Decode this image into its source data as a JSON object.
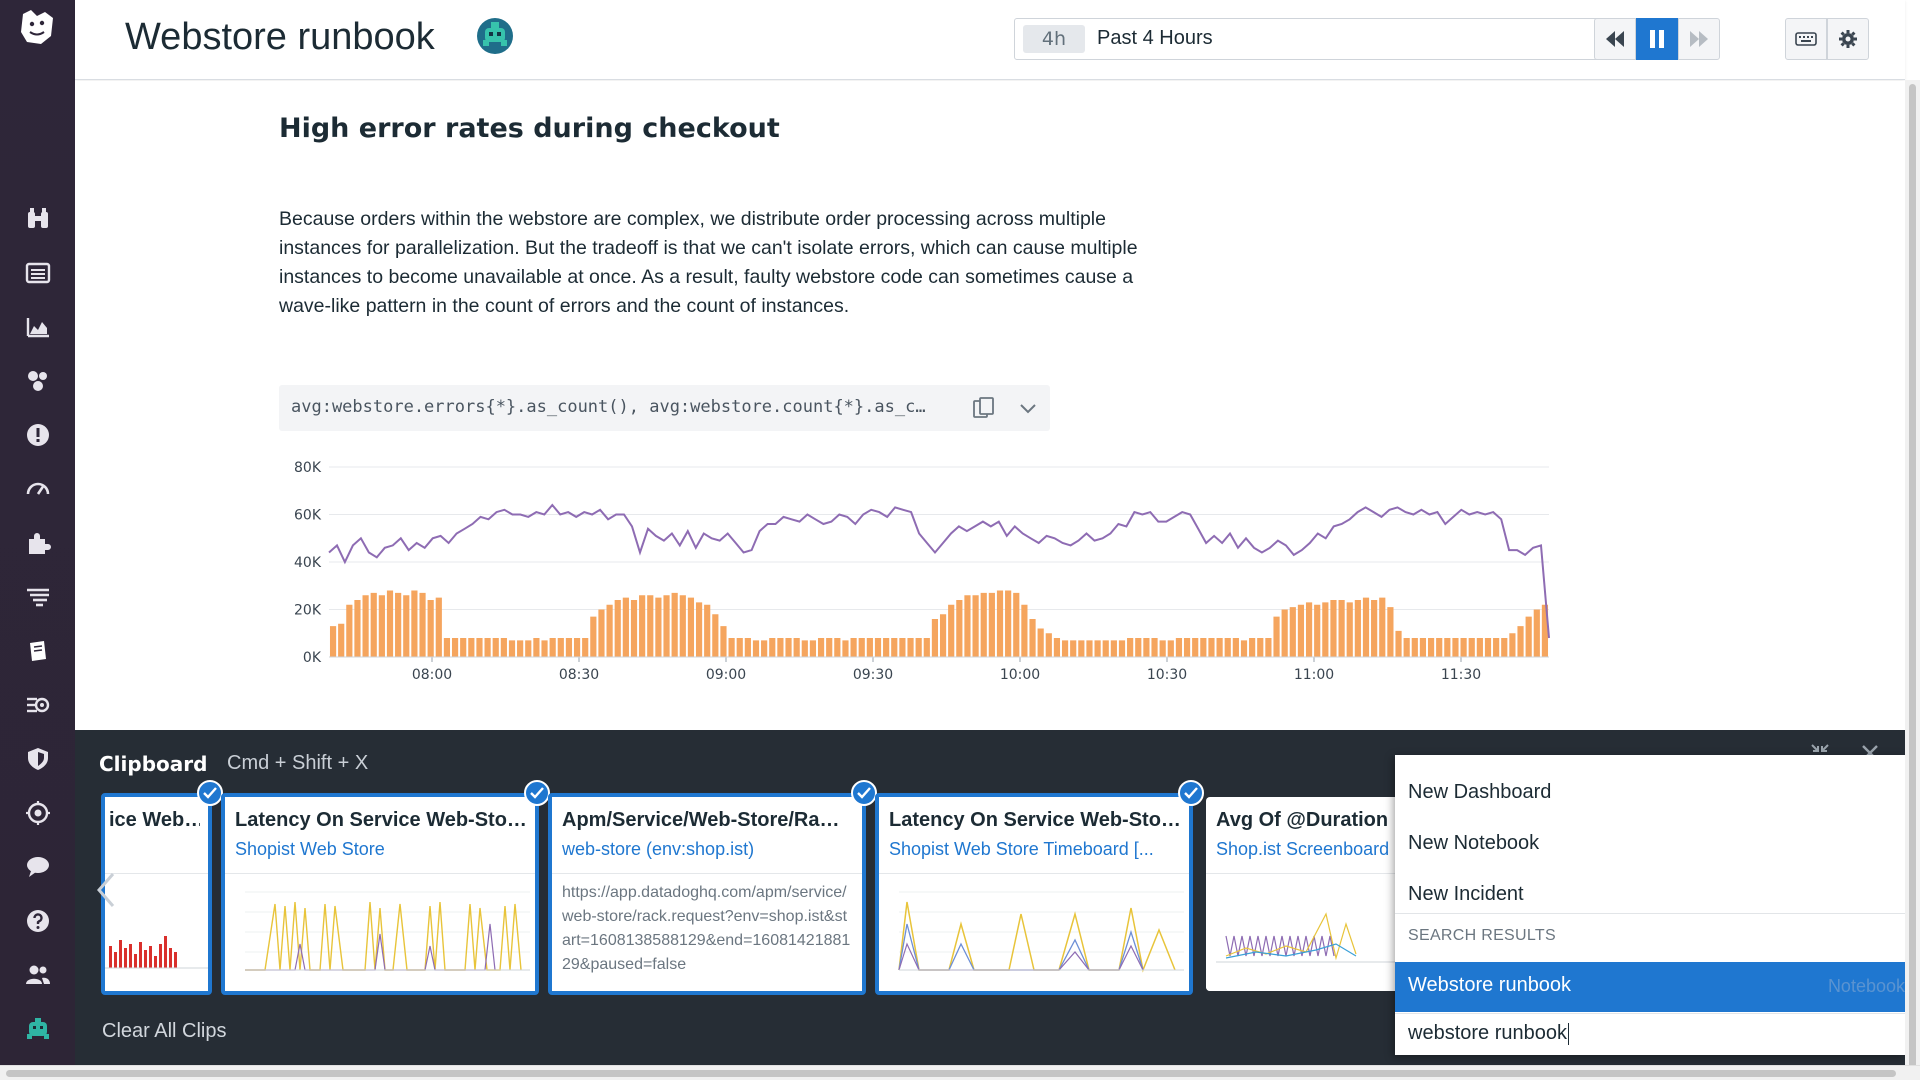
{
  "header": {
    "title": "Webstore runbook",
    "time_chip": "4h",
    "time_label": "Past 4 Hours"
  },
  "main": {
    "section_title": "High error rates during checkout",
    "body": "Because orders within the webstore are complex, we distribute order processing across multiple instances for parallelization. But the tradeoff is that we can't isolate errors, which can cause multiple instances to become unavailable at once. As a result, faulty webstore code can sometimes cause a wave-like pattern in the count of errors and the count of instances.",
    "query": "avg:webstore.errors{*}.as_count(), avg:webstore.count{*}.as_c…"
  },
  "chart_data": {
    "type": "bar",
    "ylim": [
      0,
      80000
    ],
    "y_ticks": [
      "0K",
      "20K",
      "40K",
      "60K",
      "80K"
    ],
    "x_ticks": [
      "08:00",
      "08:30",
      "09:00",
      "09:30",
      "10:00",
      "10:30",
      "11:00",
      "11:30"
    ],
    "grid": true,
    "series": [
      {
        "kind": "bar",
        "color": "#f5a55e",
        "values": [
          13,
          14,
          22,
          24,
          26,
          27,
          26,
          28,
          27,
          26,
          28,
          27,
          24,
          25,
          8,
          8,
          8,
          8,
          8,
          8,
          8,
          8,
          7,
          7,
          7,
          8,
          7,
          8,
          8,
          8,
          8,
          8,
          17,
          20,
          22,
          24,
          25,
          24,
          26,
          26,
          25,
          26,
          27,
          26,
          25,
          23,
          22,
          18,
          13,
          8,
          8,
          8,
          7,
          7,
          8,
          8,
          8,
          8,
          7,
          7,
          8,
          8,
          8,
          7,
          8,
          8,
          8,
          8,
          8,
          8,
          8,
          8,
          8,
          8,
          16,
          18,
          22,
          24,
          26,
          26,
          27,
          27,
          28,
          28,
          27,
          22,
          16,
          12,
          10,
          8,
          7,
          7,
          7,
          7,
          7,
          7,
          7,
          7,
          8,
          8,
          8,
          8,
          7,
          7,
          8,
          8,
          8,
          8,
          8,
          8,
          8,
          8,
          7,
          8,
          8,
          8,
          17,
          20,
          21,
          22,
          23,
          22,
          23,
          24,
          24,
          23,
          24,
          25,
          24,
          25,
          21,
          11,
          8,
          8,
          8,
          8,
          8,
          8,
          8,
          8,
          8,
          8,
          8,
          8,
          8,
          10,
          13,
          17,
          20,
          22
        ]
      },
      {
        "kind": "line",
        "color": "#8e6cb3",
        "values": [
          44,
          47,
          40,
          47,
          50,
          44,
          42,
          46,
          47,
          50,
          45,
          48,
          46,
          50,
          51,
          48,
          52,
          54,
          56,
          59,
          58,
          61,
          62,
          60,
          60,
          59,
          61,
          60,
          64,
          60,
          61,
          59,
          61,
          60,
          62,
          58,
          60,
          60,
          55,
          44,
          54,
          51,
          49,
          52,
          47,
          53,
          46,
          52,
          50,
          49,
          52,
          48,
          44,
          45,
          53,
          56,
          56,
          59,
          58,
          57,
          60,
          58,
          56,
          57,
          60,
          59,
          56,
          60,
          62,
          61,
          59,
          63,
          62,
          61,
          52,
          48,
          44,
          48,
          52,
          55,
          53,
          55,
          57,
          55,
          57,
          51,
          55,
          52,
          50,
          48,
          51,
          50,
          48,
          47,
          49,
          52,
          49,
          50,
          52,
          56,
          55,
          61,
          60,
          61,
          57,
          57,
          59,
          61,
          60,
          54,
          48,
          51,
          48,
          52,
          46,
          50,
          46,
          44,
          46,
          49,
          47,
          43,
          45,
          48,
          52,
          50,
          55,
          56,
          58,
          61,
          63,
          61,
          59,
          62,
          63,
          61,
          60,
          62,
          60,
          61,
          56,
          59,
          62,
          60,
          61,
          60,
          61,
          58,
          45,
          45,
          43,
          46,
          47,
          8
        ]
      }
    ]
  },
  "clipboard": {
    "title": "Clipboard",
    "shortcut": "Cmd  +  Shift  +  X",
    "clear_label": "Clear All Clips",
    "cards": [
      {
        "title": "ice Web…",
        "subtitle": "",
        "selected": true,
        "preview": "bar-red"
      },
      {
        "title": "Latency On Service Web-Sto…",
        "subtitle": "Shopist Web Store",
        "selected": true,
        "preview": "line-yellow"
      },
      {
        "title": "Apm/Service/Web-Store/Ra…",
        "subtitle": "web-store (env:shop.ist)",
        "selected": true,
        "url": "https://app.datadoghq.com/apm/service/web-store/rack.request?env=shop.ist&start=1608138588129&end=1608142188129&paused=false"
      },
      {
        "title": "Latency On Service Web-Sto…",
        "subtitle": "Shopist Web Store Timeboard [...",
        "selected": true,
        "preview": "line-multi"
      },
      {
        "title": "Avg Of @Duration",
        "subtitle": "Shop.ist Screenboard",
        "selected": false,
        "preview": "line-purple"
      }
    ]
  },
  "dropdown": {
    "items": [
      "New Dashboard",
      "New Notebook",
      "New Incident"
    ],
    "section": "SEARCH RESULTS",
    "result_label": "Webstore runbook",
    "result_type": "Notebook",
    "input_value": "webstore runbook"
  },
  "colors": {
    "accent": "#1f77d0",
    "nav_bg": "#2e2639",
    "bar": "#f5a55e",
    "line": "#8e6cb3"
  }
}
